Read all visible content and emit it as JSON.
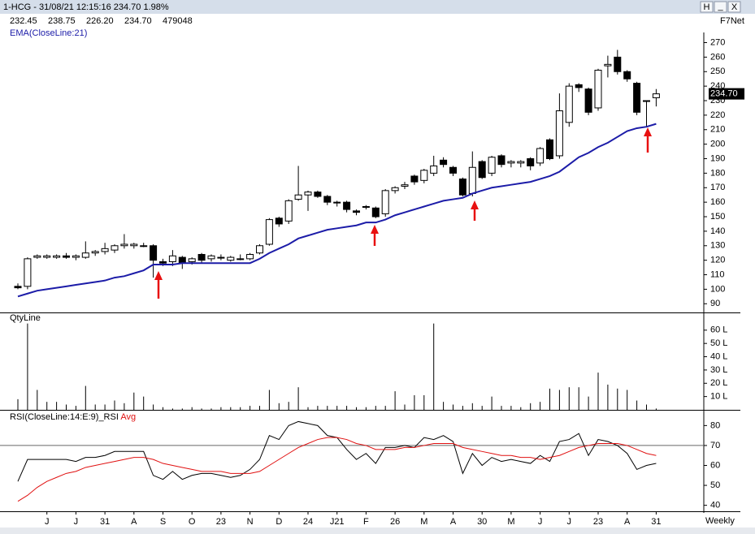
{
  "window": {
    "title": "1-HCG - 31/08/21 12:15:16 234.70 1.98%",
    "buttons": [
      "H",
      "_",
      "X"
    ],
    "quote": [
      "232.45",
      "238.75",
      "226.20",
      "234.70",
      "479048"
    ],
    "source": "F7Net"
  },
  "timeframe": "Weekly",
  "chart_data": [
    {
      "type": "candlestick",
      "open": [
        102,
        102,
        122,
        122,
        122,
        123,
        122,
        122,
        125,
        126,
        127,
        130,
        130,
        130,
        130,
        119,
        119,
        122,
        119,
        124,
        121,
        122,
        120,
        121,
        121,
        125,
        131,
        149,
        147,
        162,
        165,
        167,
        164,
        160,
        160,
        154,
        157,
        156,
        152,
        168,
        171,
        178,
        175,
        180,
        189,
        184,
        176,
        166,
        188,
        180,
        192,
        187,
        187,
        190,
        187,
        203,
        192,
        215,
        241,
        238,
        225,
        254,
        260,
        250,
        242,
        230,
        232
      ],
      "high": [
        104,
        122,
        124,
        124,
        124,
        125,
        124,
        133,
        127,
        132,
        131,
        138,
        132,
        132,
        131,
        121,
        127,
        123,
        122,
        125,
        124,
        124,
        123,
        124,
        125,
        131,
        149,
        150,
        162,
        185,
        168,
        168,
        165,
        161,
        161,
        155,
        158,
        157,
        169,
        171,
        174,
        179,
        183,
        192,
        191,
        185,
        177,
        195,
        189,
        192,
        193,
        189,
        189,
        191,
        198,
        204,
        235,
        242,
        242,
        239,
        252,
        261,
        265,
        251,
        243,
        230,
        238
      ],
      "low": [
        100,
        100,
        121,
        121,
        121,
        121,
        120,
        121,
        123,
        124,
        125,
        128,
        128,
        129,
        108,
        116,
        116,
        114,
        117,
        118,
        119,
        120,
        119,
        120,
        120,
        124,
        130,
        143,
        145,
        161,
        154,
        163,
        158,
        157,
        153,
        151,
        155,
        149,
        150,
        166,
        169,
        172,
        173,
        178,
        184,
        178,
        164,
        164,
        176,
        178,
        184,
        184,
        184,
        182,
        185,
        189,
        190,
        212,
        236,
        220,
        223,
        246,
        248,
        243,
        220,
        212,
        226
      ],
      "close": [
        101,
        121,
        123,
        123,
        123,
        122,
        123,
        125,
        126,
        128,
        130,
        131,
        131,
        130,
        120,
        118,
        123,
        118,
        121,
        120,
        123,
        122,
        122,
        121,
        124,
        130,
        148,
        145,
        161,
        165,
        167,
        164,
        160,
        160,
        155,
        153,
        157,
        150,
        168,
        170,
        172,
        174,
        182,
        185,
        186,
        180,
        165,
        184,
        177,
        191,
        186,
        188,
        188,
        185,
        197,
        190,
        223,
        240,
        239,
        222,
        251,
        255,
        250,
        245,
        222,
        230,
        234.7
      ],
      "series": [
        {
          "name": "EMA(CloseLine:21)",
          "color": "#1c1ca8",
          "values": [
            95,
            97,
            99,
            100,
            101,
            102,
            103,
            104,
            105,
            106,
            108,
            109,
            111,
            113,
            117,
            117,
            117,
            118,
            118,
            118,
            118,
            118,
            118,
            118,
            118,
            121,
            125,
            128,
            131,
            135,
            137,
            139,
            141,
            142,
            143,
            144,
            146,
            146,
            148,
            151,
            153,
            155,
            157,
            159,
            161,
            162,
            163,
            166,
            168,
            170,
            171,
            172,
            173,
            174,
            176,
            178,
            181,
            186,
            191,
            194,
            198,
            201,
            205,
            209,
            211,
            212,
            214
          ]
        }
      ],
      "last": {
        "value": 234.7,
        "label": "234.70"
      },
      "ylim": [
        84,
        277
      ],
      "yticks": [
        90,
        100,
        110,
        120,
        130,
        140,
        150,
        160,
        170,
        180,
        190,
        200,
        210,
        220,
        230,
        240,
        250,
        260,
        270
      ]
    },
    {
      "type": "bar",
      "title": "QtyLine",
      "color": "#000000",
      "values": [
        8,
        65,
        15,
        6,
        6,
        4,
        3,
        18,
        4,
        4,
        7,
        5,
        13,
        10,
        4,
        2,
        1,
        1,
        2,
        1,
        1,
        2,
        2,
        2,
        3,
        3,
        15,
        5,
        6,
        17,
        2,
        3,
        3,
        3,
        3,
        2,
        2,
        3,
        3,
        14,
        4,
        11,
        11,
        65,
        6,
        4,
        3,
        5,
        3,
        10,
        3,
        3,
        2,
        5,
        6,
        16,
        15,
        17,
        17,
        10,
        28,
        19,
        16,
        15,
        7,
        4,
        1
      ],
      "ylim": [
        0,
        66
      ],
      "yticks": [
        {
          "value": 10,
          "label": "10 L"
        },
        {
          "value": 20,
          "label": "20 L"
        },
        {
          "value": 30,
          "label": "30 L"
        },
        {
          "value": 40,
          "label": "40 L"
        },
        {
          "value": 50,
          "label": "50 L"
        },
        {
          "value": 60,
          "label": "60 L"
        }
      ]
    },
    {
      "type": "line",
      "categories": [
        null,
        null,
        null,
        "J",
        null,
        null,
        "J",
        null,
        null,
        "31",
        null,
        null,
        "A",
        null,
        null,
        "S",
        null,
        null,
        "O",
        null,
        null,
        "23",
        null,
        null,
        "N",
        null,
        null,
        "D",
        null,
        null,
        "24",
        null,
        null,
        "J21",
        null,
        null,
        "F",
        null,
        null,
        "26",
        null,
        null,
        "M",
        null,
        null,
        "A",
        null,
        null,
        "30",
        null,
        null,
        "M",
        null,
        null,
        "J",
        null,
        null,
        "J",
        null,
        null,
        "23",
        null,
        null,
        "A",
        null,
        null,
        "31"
      ],
      "series": [
        {
          "name": "RSI(CloseLine:14:E:9)_RSI",
          "color": "#000000",
          "values": [
            52,
            63,
            63,
            63,
            63,
            63,
            62,
            64,
            64,
            65,
            67,
            67,
            67,
            67,
            55,
            53,
            57,
            53,
            55,
            56,
            56,
            55,
            54,
            55,
            58,
            63,
            75,
            73,
            80,
            82,
            81,
            80,
            75,
            74,
            68,
            63,
            66,
            61,
            69,
            69,
            70,
            69,
            74,
            73,
            75,
            72,
            56,
            66,
            60,
            64,
            62,
            63,
            62,
            61,
            65,
            62,
            72,
            73,
            76,
            65,
            73,
            72,
            70,
            66,
            58,
            60,
            61
          ]
        },
        {
          "name": "Avg",
          "color": "#e01010",
          "values": [
            42,
            45,
            49,
            52,
            54,
            56,
            57,
            59,
            60,
            61,
            62,
            63,
            64,
            64,
            63,
            61,
            60,
            59,
            58,
            57,
            57,
            57,
            56,
            56,
            56,
            57,
            60,
            63,
            66,
            69,
            71,
            73,
            74,
            74,
            73,
            71,
            70,
            68,
            68,
            68,
            69,
            69,
            70,
            71,
            71,
            71,
            69,
            68,
            67,
            66,
            65,
            65,
            64,
            64,
            63,
            64,
            65,
            67,
            69,
            70,
            71,
            71,
            71,
            70,
            68,
            66,
            65
          ]
        }
      ],
      "levels": [
        70
      ],
      "ylim": [
        37,
        83
      ],
      "yticks": [
        40,
        50,
        60,
        70,
        80
      ]
    }
  ]
}
